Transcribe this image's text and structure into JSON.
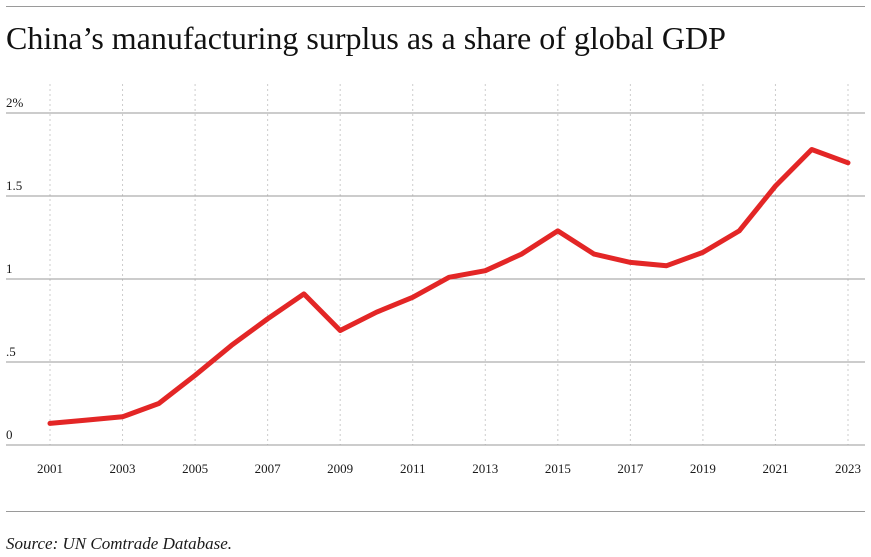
{
  "chart_data": {
    "type": "line",
    "title": "China’s manufacturing surplus as a share of global GDP",
    "xlabel": "",
    "ylabel": "",
    "x": [
      2001,
      2002,
      2003,
      2004,
      2005,
      2006,
      2007,
      2008,
      2009,
      2010,
      2011,
      2012,
      2013,
      2014,
      2015,
      2016,
      2017,
      2018,
      2019,
      2020,
      2021,
      2022,
      2023
    ],
    "series": [
      {
        "name": "",
        "values": [
          0.13,
          0.15,
          0.17,
          0.25,
          0.42,
          0.6,
          0.76,
          0.91,
          0.69,
          0.8,
          0.89,
          1.01,
          1.05,
          1.15,
          1.29,
          1.15,
          1.1,
          1.08,
          1.16,
          1.29,
          1.56,
          1.78,
          1.7
        ],
        "color": "#e32626"
      }
    ],
    "xlim": [
      2001,
      2023
    ],
    "ylim": [
      0,
      2
    ],
    "x_ticks": [
      2001,
      2003,
      2005,
      2007,
      2009,
      2011,
      2013,
      2015,
      2017,
      2019,
      2021,
      2023
    ],
    "x_tick_labels": [
      "2001",
      "2003",
      "2005",
      "2007",
      "2009",
      "2011",
      "2013",
      "2015",
      "2017",
      "2019",
      "2021",
      "2023"
    ],
    "y_ticks": [
      0,
      0.5,
      1,
      1.5,
      2
    ],
    "y_tick_labels": [
      "0",
      ".5",
      "1",
      "1.5",
      "2%"
    ],
    "grid": "horizontal solid, vertical dotted",
    "legend": "none"
  },
  "footer": {
    "source": "Source: UN Comtrade Database."
  },
  "colors": {
    "line": "#e32626",
    "gridline": "#9a9a9a",
    "vertical_grid": "#cccccc",
    "text": "#1a1a1a"
  }
}
